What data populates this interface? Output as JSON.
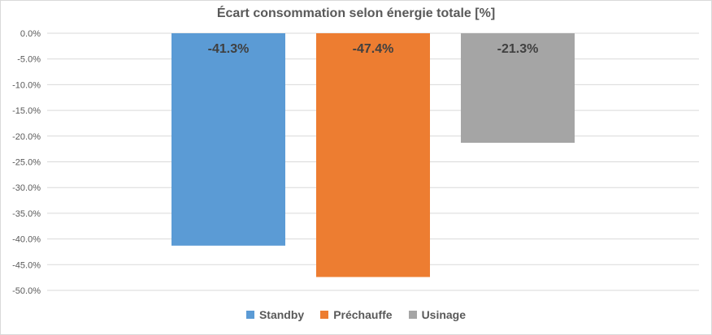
{
  "chart_data": {
    "type": "bar",
    "title": "Écart consommation selon énergie totale [%]",
    "xlabel": "",
    "ylabel": "",
    "ylim": [
      -50.0,
      0.0
    ],
    "ytick_step": 5.0,
    "yticks": [
      "0.0%",
      "-5.0%",
      "-10.0%",
      "-15.0%",
      "-20.0%",
      "-25.0%",
      "-30.0%",
      "-35.0%",
      "-40.0%",
      "-45.0%",
      "-50.0%"
    ],
    "grid": true,
    "legend_position": "bottom",
    "series": [
      {
        "name": "Standby",
        "values": [
          -41.3
        ],
        "label": "-41.3%",
        "color": "#5B9BD5"
      },
      {
        "name": "Préchauffe",
        "values": [
          -47.4
        ],
        "label": "-47.4%",
        "color": "#ED7D31"
      },
      {
        "name": "Usinage",
        "values": [
          -21.3
        ],
        "label": "-21.3%",
        "color": "#A5A5A5"
      }
    ]
  }
}
